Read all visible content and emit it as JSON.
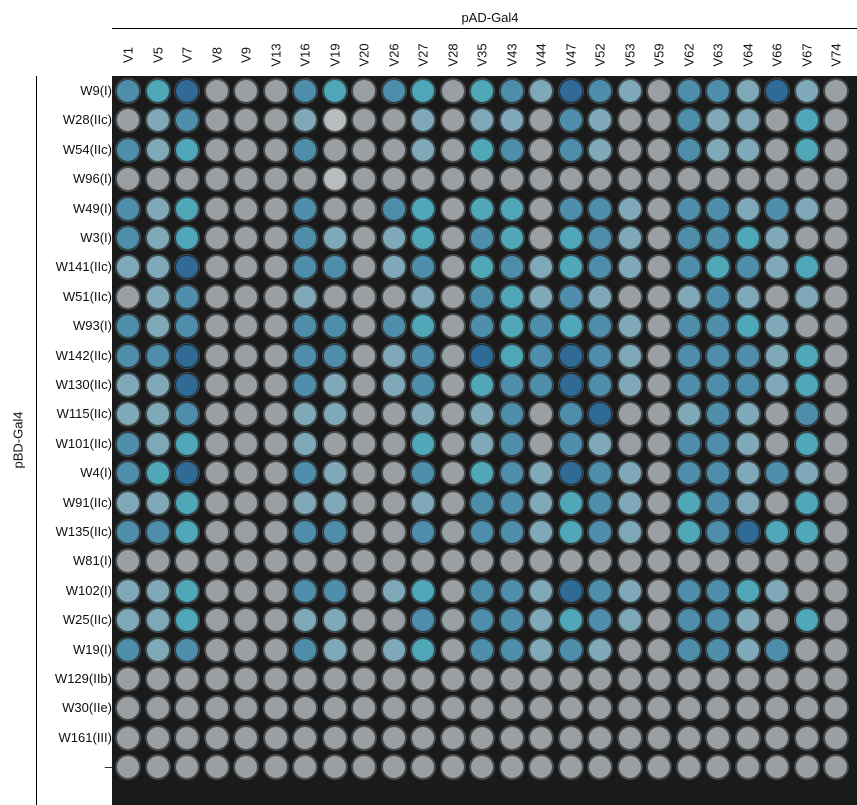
{
  "header": {
    "title": "pAD-Gal4"
  },
  "side": {
    "title": "pBD-Gal4"
  },
  "columns": [
    "V1",
    "V5",
    "V7",
    "V8",
    "V9",
    "V13",
    "V16",
    "V19",
    "V20",
    "V26",
    "V27",
    "V28",
    "V35",
    "V43",
    "V44",
    "V47",
    "V52",
    "V53",
    "V59",
    "V62",
    "V63",
    "V64",
    "V66",
    "V67",
    "V74"
  ],
  "rows": [
    "W9(I)",
    "W28(IIc)",
    "W54(IIc)",
    "W96(I)",
    "W49(I)",
    "W3(I)",
    "W141(IIc)",
    "W51(IIc)",
    "W93(I)",
    "W142(IIc)",
    "W130(IIc)",
    "W115(IIc)",
    "W101(IIc)",
    "W4(I)",
    "W91(IIc)",
    "W135(IIc)",
    "W81(I)",
    "W102(I)",
    "W25(IIc)",
    "W19(I)",
    "W129(IIb)",
    "W30(IIe)",
    "W161(III)",
    "–"
  ],
  "colors": {
    "grey": "#9a9fa3",
    "light_grey": "#b7bcbf",
    "light_blue": "#7fa9b8",
    "blue": "#4f8eaa",
    "dark_blue": "#2f6b95",
    "navy": "#1f4f82",
    "aqua": "#4fa7b8"
  },
  "wells": [
    [
      3,
      4,
      5,
      1,
      1,
      1,
      3,
      4,
      1,
      3,
      4,
      1,
      4,
      3,
      2,
      5,
      3,
      2,
      1,
      3,
      3,
      2,
      5,
      2,
      1
    ],
    [
      1,
      2,
      3,
      1,
      1,
      1,
      2,
      0,
      1,
      1,
      2,
      1,
      2,
      2,
      1,
      3,
      2,
      1,
      1,
      3,
      2,
      2,
      1,
      4,
      1
    ],
    [
      3,
      2,
      4,
      1,
      1,
      1,
      3,
      1,
      1,
      1,
      2,
      1,
      4,
      3,
      1,
      3,
      2,
      1,
      1,
      3,
      2,
      2,
      1,
      4,
      1
    ],
    [
      1,
      1,
      1,
      1,
      1,
      1,
      1,
      0,
      1,
      1,
      1,
      1,
      1,
      1,
      1,
      1,
      1,
      1,
      1,
      1,
      1,
      1,
      1,
      1,
      1
    ],
    [
      3,
      2,
      4,
      1,
      1,
      1,
      3,
      1,
      1,
      3,
      4,
      1,
      4,
      4,
      1,
      3,
      3,
      2,
      1,
      3,
      3,
      2,
      3,
      2,
      1
    ],
    [
      3,
      2,
      4,
      1,
      1,
      1,
      3,
      2,
      1,
      2,
      4,
      1,
      3,
      4,
      1,
      4,
      3,
      2,
      1,
      3,
      3,
      4,
      2,
      1,
      1
    ],
    [
      2,
      2,
      5,
      1,
      1,
      1,
      3,
      3,
      1,
      2,
      3,
      1,
      4,
      3,
      2,
      4,
      3,
      2,
      1,
      3,
      4,
      3,
      2,
      4,
      1
    ],
    [
      1,
      2,
      3,
      1,
      1,
      1,
      2,
      1,
      1,
      1,
      2,
      1,
      3,
      4,
      2,
      3,
      2,
      1,
      1,
      2,
      3,
      2,
      1,
      2,
      1
    ],
    [
      3,
      2,
      3,
      1,
      1,
      1,
      3,
      3,
      1,
      3,
      4,
      1,
      3,
      4,
      3,
      4,
      3,
      2,
      1,
      3,
      3,
      4,
      2,
      1,
      1
    ],
    [
      3,
      3,
      5,
      1,
      1,
      1,
      3,
      3,
      1,
      2,
      3,
      1,
      5,
      4,
      3,
      5,
      3,
      2,
      1,
      3,
      3,
      3,
      2,
      4,
      1
    ],
    [
      2,
      2,
      5,
      1,
      1,
      1,
      3,
      2,
      1,
      2,
      3,
      1,
      4,
      3,
      3,
      5,
      3,
      2,
      1,
      3,
      3,
      3,
      2,
      4,
      1
    ],
    [
      2,
      2,
      3,
      1,
      1,
      1,
      2,
      2,
      1,
      1,
      2,
      1,
      2,
      3,
      1,
      3,
      5,
      1,
      1,
      2,
      3,
      2,
      1,
      3,
      1
    ],
    [
      3,
      2,
      4,
      1,
      1,
      1,
      2,
      1,
      1,
      1,
      4,
      1,
      2,
      3,
      1,
      3,
      2,
      1,
      1,
      3,
      3,
      2,
      1,
      4,
      1
    ],
    [
      3,
      4,
      5,
      1,
      1,
      1,
      3,
      2,
      1,
      1,
      3,
      1,
      4,
      3,
      2,
      5,
      3,
      2,
      1,
      3,
      3,
      2,
      3,
      2,
      1
    ],
    [
      2,
      2,
      4,
      1,
      1,
      1,
      2,
      2,
      1,
      1,
      2,
      1,
      3,
      3,
      2,
      4,
      3,
      2,
      1,
      4,
      3,
      2,
      1,
      4,
      1
    ],
    [
      3,
      3,
      4,
      1,
      1,
      1,
      3,
      3,
      1,
      1,
      3,
      1,
      3,
      3,
      2,
      4,
      3,
      2,
      1,
      4,
      3,
      5,
      4,
      4,
      1
    ],
    [
      1,
      1,
      1,
      1,
      1,
      1,
      1,
      1,
      1,
      1,
      1,
      1,
      1,
      1,
      1,
      1,
      1,
      1,
      1,
      1,
      1,
      1,
      1,
      1,
      1
    ],
    [
      2,
      2,
      4,
      1,
      1,
      1,
      3,
      3,
      1,
      2,
      4,
      1,
      3,
      3,
      2,
      5,
      3,
      2,
      1,
      3,
      3,
      4,
      2,
      1,
      1
    ],
    [
      2,
      2,
      4,
      1,
      1,
      1,
      2,
      2,
      1,
      1,
      3,
      1,
      3,
      3,
      2,
      4,
      3,
      2,
      1,
      3,
      3,
      2,
      1,
      4,
      1
    ],
    [
      3,
      2,
      3,
      1,
      1,
      1,
      3,
      2,
      1,
      2,
      4,
      1,
      3,
      3,
      2,
      3,
      2,
      1,
      1,
      3,
      3,
      2,
      3,
      1,
      1
    ],
    [
      1,
      1,
      1,
      1,
      1,
      1,
      1,
      1,
      1,
      1,
      1,
      1,
      1,
      1,
      1,
      1,
      1,
      1,
      1,
      1,
      1,
      1,
      1,
      1,
      1
    ],
    [
      1,
      1,
      1,
      1,
      1,
      1,
      1,
      1,
      1,
      1,
      1,
      1,
      1,
      1,
      1,
      1,
      1,
      1,
      1,
      1,
      1,
      1,
      1,
      1,
      1
    ],
    [
      1,
      1,
      1,
      1,
      1,
      1,
      1,
      1,
      1,
      1,
      1,
      1,
      1,
      1,
      1,
      1,
      1,
      1,
      1,
      1,
      1,
      1,
      1,
      1,
      1
    ],
    [
      1,
      1,
      1,
      1,
      1,
      1,
      1,
      1,
      1,
      1,
      1,
      1,
      1,
      1,
      1,
      1,
      1,
      1,
      1,
      1,
      1,
      1,
      1,
      1,
      1
    ]
  ]
}
